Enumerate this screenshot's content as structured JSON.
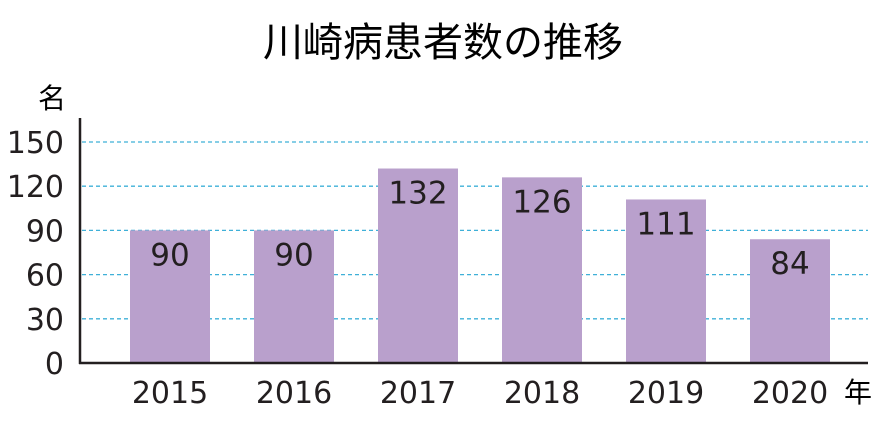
{
  "chart_data": {
    "type": "bar",
    "title": "川崎病患者数の推移",
    "ylabel": "名",
    "xlabel": "年",
    "categories": [
      "2015",
      "2016",
      "2017",
      "2018",
      "2019",
      "2020"
    ],
    "values": [
      90,
      90,
      132,
      126,
      111,
      84
    ],
    "data_labels": [
      "90",
      "90",
      "132",
      "126",
      "111",
      "84"
    ],
    "ylim": [
      0,
      150
    ],
    "yticks": [
      0,
      30,
      60,
      90,
      120,
      150
    ],
    "grid": "dashed horizontal",
    "colors": {
      "bar": "#b9a0cc",
      "grid": "#3fb0d8",
      "axis": "#231f20",
      "text": "#231f20"
    }
  }
}
